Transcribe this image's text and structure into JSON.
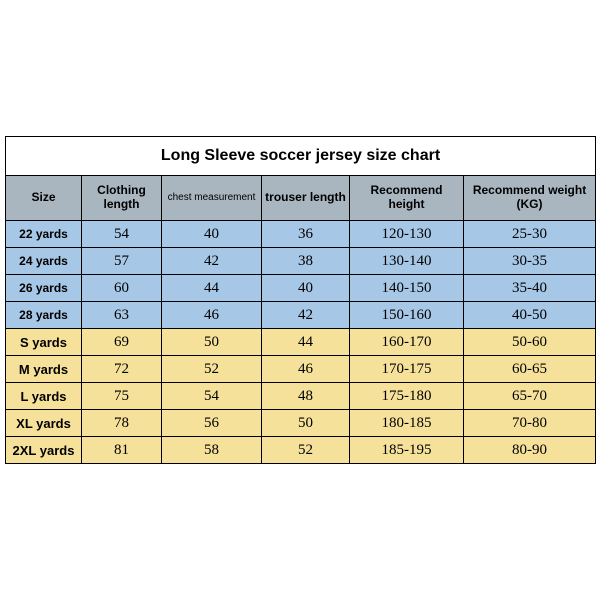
{
  "chart": {
    "title": "Long Sleeve soccer jersey size chart",
    "columns": [
      {
        "label": "Size",
        "width": 76
      },
      {
        "label": "Clothing length",
        "width": 80,
        "multiline": true
      },
      {
        "label": "chest measurement",
        "width": 100,
        "small": true
      },
      {
        "label": "trouser length",
        "width": 88
      },
      {
        "label": "Recommend height",
        "width": 114,
        "multiline": true
      },
      {
        "label": "Recommend weight (KG)",
        "width": 132
      }
    ],
    "colors": {
      "header_bg": "#a9b6bf",
      "kid_bg": "#a7c7e7",
      "adult_bg": "#f5e19a",
      "border": "#000000"
    },
    "rows": [
      {
        "group": "kid",
        "size": "22 yards",
        "values": [
          "54",
          "40",
          "36",
          "120-130",
          "25-30"
        ]
      },
      {
        "group": "kid",
        "size": "24 yards",
        "values": [
          "57",
          "42",
          "38",
          "130-140",
          "30-35"
        ]
      },
      {
        "group": "kid",
        "size": "26 yards",
        "values": [
          "60",
          "44",
          "40",
          "140-150",
          "35-40"
        ]
      },
      {
        "group": "kid",
        "size": "28 yards",
        "values": [
          "63",
          "46",
          "42",
          "150-160",
          "40-50"
        ]
      },
      {
        "group": "adult",
        "size": "S yards",
        "values": [
          "69",
          "50",
          "44",
          "160-170",
          "50-60"
        ]
      },
      {
        "group": "adult",
        "size": "M yards",
        "values": [
          "72",
          "52",
          "46",
          "170-175",
          "60-65"
        ]
      },
      {
        "group": "adult",
        "size": "L yards",
        "values": [
          "75",
          "54",
          "48",
          "175-180",
          "65-70"
        ]
      },
      {
        "group": "adult",
        "size": "XL yards",
        "values": [
          "78",
          "56",
          "50",
          "180-185",
          "70-80"
        ]
      },
      {
        "group": "adult",
        "size": "2XL yards",
        "values": [
          "81",
          "58",
          "52",
          "185-195",
          "80-90"
        ]
      }
    ]
  }
}
